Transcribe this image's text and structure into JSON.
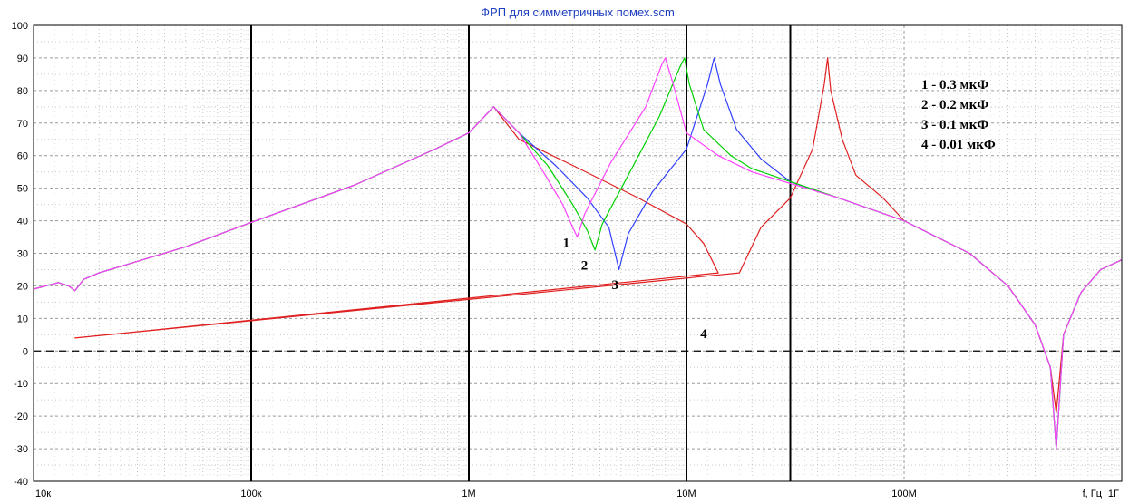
{
  "chart_data": {
    "type": "line",
    "title": "ФРП для симметричных помех.scm",
    "xlabel": "f, Гц",
    "x_scale": "log",
    "xlim": [
      10000,
      1000000000
    ],
    "ylim": [
      -40,
      100
    ],
    "y_ticks": [
      100,
      90,
      80,
      70,
      60,
      50,
      40,
      30,
      20,
      10,
      0,
      -10,
      -20,
      -30,
      -40
    ],
    "x_ticks": [
      {
        "value": 10000,
        "label": "10к"
      },
      {
        "value": 100000,
        "label": "100к"
      },
      {
        "value": 1000000,
        "label": "1М"
      },
      {
        "value": 10000000,
        "label": "10М"
      },
      {
        "value": 100000000,
        "label": "100М"
      },
      {
        "value": 1000000000,
        "label": "1Г"
      }
    ],
    "grid": true,
    "zero_line": 0,
    "vertical_markers": [
      100000,
      1000000,
      10000000,
      30000000
    ],
    "series": [
      {
        "id": "1",
        "color": "#ff40ff",
        "points": [
          [
            10000,
            19
          ],
          [
            13000,
            21
          ],
          [
            14500,
            20
          ],
          [
            15500,
            18.5
          ],
          [
            17000,
            22
          ],
          [
            20000,
            24
          ],
          [
            50000,
            32
          ],
          [
            100000,
            39.5
          ],
          [
            300000,
            51
          ],
          [
            700000,
            62
          ],
          [
            1000000,
            67
          ],
          [
            1300000,
            75
          ],
          [
            1700000,
            67
          ],
          [
            2200000,
            55
          ],
          [
            2700000,
            45
          ],
          [
            3000000,
            38
          ],
          [
            3150000,
            35
          ],
          [
            3400000,
            42
          ],
          [
            4500000,
            58
          ],
          [
            6500000,
            75
          ],
          [
            7700000,
            88
          ],
          [
            8000000,
            90
          ],
          [
            8600000,
            83
          ],
          [
            10000000,
            67
          ],
          [
            14000000,
            60
          ],
          [
            20000000,
            55
          ],
          [
            50000000,
            47
          ],
          [
            100000000,
            40
          ],
          [
            200000000,
            30
          ],
          [
            300000000,
            20
          ],
          [
            400000000,
            8
          ],
          [
            470000000,
            -5
          ],
          [
            500000000,
            -30
          ],
          [
            540000000,
            5
          ],
          [
            650000000,
            18
          ],
          [
            800000000,
            25
          ],
          [
            1000000000,
            28
          ]
        ]
      },
      {
        "id": "2",
        "color": "#00d000",
        "points": [
          [
            10000,
            19
          ],
          [
            13000,
            21
          ],
          [
            14500,
            20
          ],
          [
            15500,
            18.5
          ],
          [
            17000,
            22
          ],
          [
            20000,
            24
          ],
          [
            50000,
            32
          ],
          [
            100000,
            39.5
          ],
          [
            300000,
            51
          ],
          [
            700000,
            62
          ],
          [
            1000000,
            67
          ],
          [
            1300000,
            75
          ],
          [
            1700000,
            67
          ],
          [
            2300000,
            57
          ],
          [
            3000000,
            45
          ],
          [
            3500000,
            37
          ],
          [
            3800000,
            31
          ],
          [
            4100000,
            39
          ],
          [
            5500000,
            55
          ],
          [
            7500000,
            72
          ],
          [
            9300000,
            87
          ],
          [
            9800000,
            90
          ],
          [
            10300000,
            82
          ],
          [
            12000000,
            68
          ],
          [
            16000000,
            60
          ],
          [
            20000000,
            56
          ],
          [
            50000000,
            47
          ],
          [
            100000000,
            40
          ],
          [
            200000000,
            30
          ],
          [
            300000000,
            20
          ],
          [
            400000000,
            8
          ],
          [
            470000000,
            -5
          ],
          [
            500000000,
            -30
          ],
          [
            540000000,
            5
          ],
          [
            650000000,
            18
          ],
          [
            800000000,
            25
          ],
          [
            1000000000,
            28
          ]
        ]
      },
      {
        "id": "3",
        "color": "#3040ff",
        "points": [
          [
            10000,
            19
          ],
          [
            13000,
            21
          ],
          [
            14500,
            20
          ],
          [
            15500,
            18.5
          ],
          [
            17000,
            22
          ],
          [
            20000,
            24
          ],
          [
            50000,
            32
          ],
          [
            100000,
            39.5
          ],
          [
            300000,
            51
          ],
          [
            700000,
            62
          ],
          [
            1000000,
            67
          ],
          [
            1300000,
            75
          ],
          [
            1700000,
            67
          ],
          [
            2500000,
            57
          ],
          [
            3500000,
            47
          ],
          [
            4400000,
            38
          ],
          [
            4900000,
            25
          ],
          [
            5400000,
            36
          ],
          [
            7000000,
            49
          ],
          [
            10000000,
            62
          ],
          [
            12500000,
            82
          ],
          [
            13400000,
            90
          ],
          [
            14300000,
            82
          ],
          [
            17000000,
            68
          ],
          [
            22000000,
            59
          ],
          [
            30000000,
            52
          ],
          [
            50000000,
            47
          ],
          [
            100000000,
            40
          ],
          [
            200000000,
            30
          ],
          [
            300000000,
            20
          ],
          [
            400000000,
            8
          ],
          [
            470000000,
            -5
          ],
          [
            500000000,
            -30
          ],
          [
            540000000,
            5
          ],
          [
            650000000,
            18
          ],
          [
            800000000,
            25
          ],
          [
            1000000000,
            28
          ]
        ]
      },
      {
        "id": "4",
        "color": "#e02020",
        "points": [
          [
            10000,
            19
          ],
          [
            13000,
            21
          ],
          [
            14500,
            20
          ],
          [
            15500,
            18.5
          ],
          [
            17000,
            22
          ],
          [
            20000,
            24
          ],
          [
            50000,
            32
          ],
          [
            100000,
            39.5
          ],
          [
            300000,
            51
          ],
          [
            700000,
            62
          ],
          [
            1000000,
            67
          ],
          [
            1300000,
            75
          ],
          [
            1700000,
            65
          ],
          [
            3000000,
            57
          ],
          [
            6000000,
            47
          ],
          [
            10000000,
            39
          ],
          [
            12000000,
            33
          ],
          [
            14000000,
            24
          ],
          [
            15500,
            4
          ],
          [
            17500000,
            24
          ],
          [
            22000000,
            38
          ],
          [
            30000000,
            47
          ],
          [
            38000000,
            62
          ],
          [
            43000000,
            82
          ],
          [
            44500000,
            90
          ],
          [
            46000000,
            80
          ],
          [
            52000000,
            65
          ],
          [
            60000000,
            54
          ],
          [
            80000000,
            47
          ],
          [
            100000000,
            40
          ],
          [
            200000000,
            30
          ],
          [
            300000000,
            20
          ],
          [
            400000000,
            8
          ],
          [
            470000000,
            -5
          ],
          [
            500000000,
            -19
          ],
          [
            540000000,
            5
          ],
          [
            650000000,
            18
          ],
          [
            800000000,
            25
          ],
          [
            1000000000,
            28
          ]
        ]
      }
    ],
    "annotations": [
      {
        "text": "1",
        "x": 2800000,
        "y": 32
      },
      {
        "text": "2",
        "x": 3400000,
        "y": 25
      },
      {
        "text": "3",
        "x": 4700000,
        "y": 19
      },
      {
        "text": "4",
        "x": 12000000,
        "y": 4
      }
    ],
    "legend_lines": [
      "1 - 0.3 мкФ",
      "2 - 0.2 мкФ",
      "3 - 0.1 мкФ",
      "4 - 0.01 мкФ"
    ],
    "legend_position": "top-right"
  }
}
